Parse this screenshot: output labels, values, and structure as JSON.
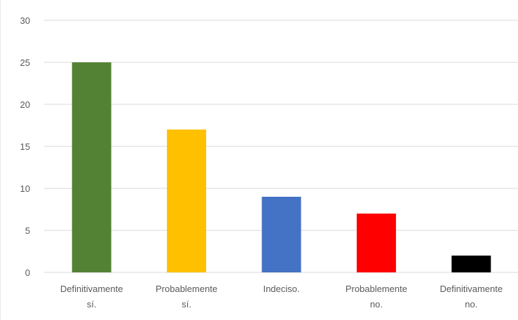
{
  "chart_data": {
    "type": "bar",
    "categories": [
      [
        "Definitivamente",
        "sí."
      ],
      [
        "Probablemente",
        "sí."
      ],
      [
        "Indeciso."
      ],
      [
        "Probablemente",
        "no."
      ],
      [
        "Definitivamente",
        "no."
      ]
    ],
    "values": [
      25,
      17,
      9,
      7,
      2
    ],
    "colors": [
      "#548235",
      "#ffc000",
      "#4472c4",
      "#ff0000",
      "#000000"
    ],
    "ylim": [
      0,
      30
    ],
    "yticks": [
      0,
      5,
      10,
      15,
      20,
      25,
      30
    ],
    "grid": true,
    "legend": "none",
    "title": "",
    "xlabel": "",
    "ylabel": ""
  }
}
